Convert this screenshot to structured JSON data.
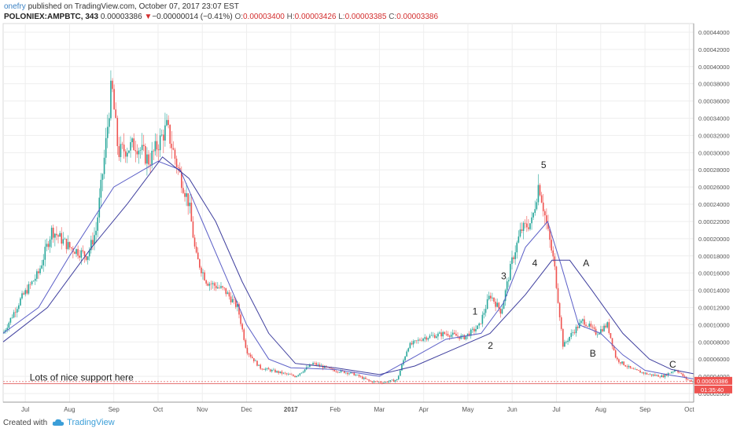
{
  "header": {
    "author": "onefry",
    "published": " published on TradingView.com, October 07, 2017 23:07 EST",
    "symbol": "POLONIEX:AMPBTC, 343",
    "last": "0.00003386",
    "change_arrow": "▼",
    "change": "−0.00000014 (−0.41%)",
    "o_label": "O:",
    "o_val": "0.00003400",
    "h_label": "H:",
    "h_val": "0.00003426",
    "l_label": "L:",
    "l_val": "0.00003385",
    "c_label": "C:",
    "c_val": "0.00003386"
  },
  "footer": {
    "created_with": "Created with",
    "brand": "TradingView"
  },
  "colors": {
    "candle_up": "#26a69a",
    "candle_down": "#ef5350",
    "ma_fast": "#5b5fc7",
    "ma_slow": "#3f3f9e",
    "support": "#e57373",
    "price_tag": "#ef5350"
  },
  "chart_data": {
    "type": "candlestick",
    "title": "POLONIEX:AMPBTC, 343",
    "ylim": [
      1e-05,
      0.00045
    ],
    "y_ticks": [
      "0.00044000",
      "0.00042000",
      "0.00040000",
      "0.00038000",
      "0.00036000",
      "0.00034000",
      "0.00032000",
      "0.00030000",
      "0.00028000",
      "0.00026000",
      "0.00024000",
      "0.00022000",
      "0.00020000",
      "0.00018000",
      "0.00016000",
      "0.00014000",
      "0.00012000",
      "0.00010000",
      "0.00008000",
      "0.00006000",
      "0.00004000",
      "0.00002000"
    ],
    "y_tick_values": [
      0.00044,
      0.00042,
      0.0004,
      0.00038,
      0.00036,
      0.00034,
      0.00032,
      0.0003,
      0.00028,
      0.00026,
      0.00024,
      0.00022,
      0.0002,
      0.00018,
      0.00016,
      0.00014,
      0.00012,
      0.0001,
      8e-05,
      6e-05,
      4e-05,
      2e-05
    ],
    "x_labels": [
      "Jul",
      "Aug",
      "Sep",
      "Oct",
      "Nov",
      "Dec",
      "2017",
      "Feb",
      "Mar",
      "Apr",
      "May",
      "Jun",
      "Jul",
      "Aug",
      "Sep",
      "Oct"
    ],
    "x_label_positions": [
      0.5,
      1.5,
      2.5,
      3.5,
      4.5,
      5.5,
      6.5,
      7.5,
      8.5,
      9.5,
      10.5,
      11.5,
      12.5,
      13.5,
      14.5,
      15.5
    ],
    "x_range": [
      0,
      15.6
    ],
    "price_path": [
      [
        0,
        9e-05
      ],
      [
        0.4,
        0.00013
      ],
      [
        0.8,
        0.00016
      ],
      [
        1.1,
        0.00021
      ],
      [
        1.5,
        0.00019
      ],
      [
        1.9,
        0.00018
      ],
      [
        2.1,
        0.00021
      ],
      [
        2.3,
        0.0003
      ],
      [
        2.45,
        0.00038
      ],
      [
        2.6,
        0.0003
      ],
      [
        3.0,
        0.00031
      ],
      [
        3.3,
        0.00029
      ],
      [
        3.7,
        0.00033
      ],
      [
        3.9,
        0.00029
      ],
      [
        4.2,
        0.00024
      ],
      [
        4.35,
        0.00018
      ],
      [
        4.6,
        0.00015
      ],
      [
        5.0,
        0.00014
      ],
      [
        5.3,
        0.00012
      ],
      [
        5.5,
        7e-05
      ],
      [
        5.8,
        5e-05
      ],
      [
        6.2,
        4.5e-05
      ],
      [
        6.6,
        4e-05
      ],
      [
        7.0,
        5.5e-05
      ],
      [
        7.4,
        4.8e-05
      ],
      [
        7.9,
        4.3e-05
      ],
      [
        8.3,
        3.4e-05
      ],
      [
        8.6,
        3.3e-05
      ],
      [
        8.9,
        3.6e-05
      ],
      [
        9.15,
        7.5e-05
      ],
      [
        9.5,
        8.5e-05
      ],
      [
        10.0,
        9e-05
      ],
      [
        10.4,
        8.5e-05
      ],
      [
        10.75,
        9.8e-05
      ],
      [
        11.0,
        0.000135
      ],
      [
        11.25,
        0.000115
      ],
      [
        11.5,
        0.000175
      ],
      [
        11.7,
        0.00021
      ],
      [
        11.95,
        0.00022
      ],
      [
        12.1,
        0.000265
      ],
      [
        12.3,
        0.00021
      ],
      [
        12.45,
        0.00017
      ],
      [
        12.65,
        7.5e-05
      ],
      [
        12.85,
        9e-05
      ],
      [
        13.1,
        0.000105
      ],
      [
        13.4,
        9e-05
      ],
      [
        13.65,
        0.0001
      ],
      [
        13.85,
        6e-05
      ],
      [
        14.2,
        4.8e-05
      ],
      [
        14.6,
        4.2e-05
      ],
      [
        14.9,
        4e-05
      ],
      [
        15.2,
        4.8e-05
      ],
      [
        15.45,
        3.6e-05
      ],
      [
        15.6,
        3.39e-05
      ]
    ],
    "series": [
      {
        "values": [
          [
            0,
            9e-05
          ],
          [
            0.8,
            0.00012
          ],
          [
            1.5,
            0.00018
          ],
          [
            2.5,
            0.00026
          ],
          [
            3.5,
            0.00029
          ],
          [
            4.0,
            0.00028
          ],
          [
            4.5,
            0.00022
          ],
          [
            5.0,
            0.00016
          ],
          [
            5.5,
            0.0001
          ],
          [
            6.0,
            6e-05
          ],
          [
            6.5,
            5e-05
          ],
          [
            7.5,
            4.8e-05
          ],
          [
            8.5,
            4e-05
          ],
          [
            9.2,
            6e-05
          ],
          [
            10.0,
            8.3e-05
          ],
          [
            10.8,
            9e-05
          ],
          [
            11.3,
            0.000125
          ],
          [
            11.8,
            0.00019
          ],
          [
            12.3,
            0.00022
          ],
          [
            12.6,
            0.00017
          ],
          [
            13.0,
            0.0001
          ],
          [
            13.5,
            9e-05
          ],
          [
            14.0,
            6.5e-05
          ],
          [
            14.5,
            4.7e-05
          ],
          [
            15.0,
            4.2e-05
          ],
          [
            15.6,
            3.7e-05
          ]
        ]
      },
      {
        "values": [
          [
            0,
            8e-05
          ],
          [
            1.0,
            0.00012
          ],
          [
            2.0,
            0.00019
          ],
          [
            2.8,
            0.00024
          ],
          [
            3.6,
            0.000295
          ],
          [
            4.2,
            0.00027
          ],
          [
            4.8,
            0.00022
          ],
          [
            5.4,
            0.00015
          ],
          [
            6.0,
            9e-05
          ],
          [
            6.6,
            5.5e-05
          ],
          [
            7.5,
            5e-05
          ],
          [
            8.5,
            4.2e-05
          ],
          [
            9.3,
            5.2e-05
          ],
          [
            10.2,
            7.2e-05
          ],
          [
            11.0,
            9e-05
          ],
          [
            11.8,
            0.000135
          ],
          [
            12.4,
            0.000175
          ],
          [
            12.8,
            0.000175
          ],
          [
            13.3,
            0.00014
          ],
          [
            14.0,
            9e-05
          ],
          [
            14.6,
            6e-05
          ],
          [
            15.1,
            4.8e-05
          ],
          [
            15.6,
            4.3e-05
          ]
        ]
      }
    ],
    "annotations": [
      {
        "text": "Lots of nice support here",
        "x": 0.6,
        "y": 3.5e-05
      },
      {
        "text": "1",
        "x": 10.6,
        "y": 0.000112
      },
      {
        "text": "2",
        "x": 10.95,
        "y": 7.2e-05
      },
      {
        "text": "3",
        "x": 11.25,
        "y": 0.000153
      },
      {
        "text": "4",
        "x": 11.95,
        "y": 0.000168
      },
      {
        "text": "5",
        "x": 12.15,
        "y": 0.000282
      },
      {
        "text": "A",
        "x": 13.1,
        "y": 0.000168
      },
      {
        "text": "B",
        "x": 13.25,
        "y": 6.3e-05
      },
      {
        "text": "C",
        "x": 15.05,
        "y": 5e-05
      }
    ],
    "support_level": 3.15e-05,
    "last_price": 3.39e-05,
    "last_price_label": "0.00003386",
    "countdown_label": "01:35:40"
  }
}
